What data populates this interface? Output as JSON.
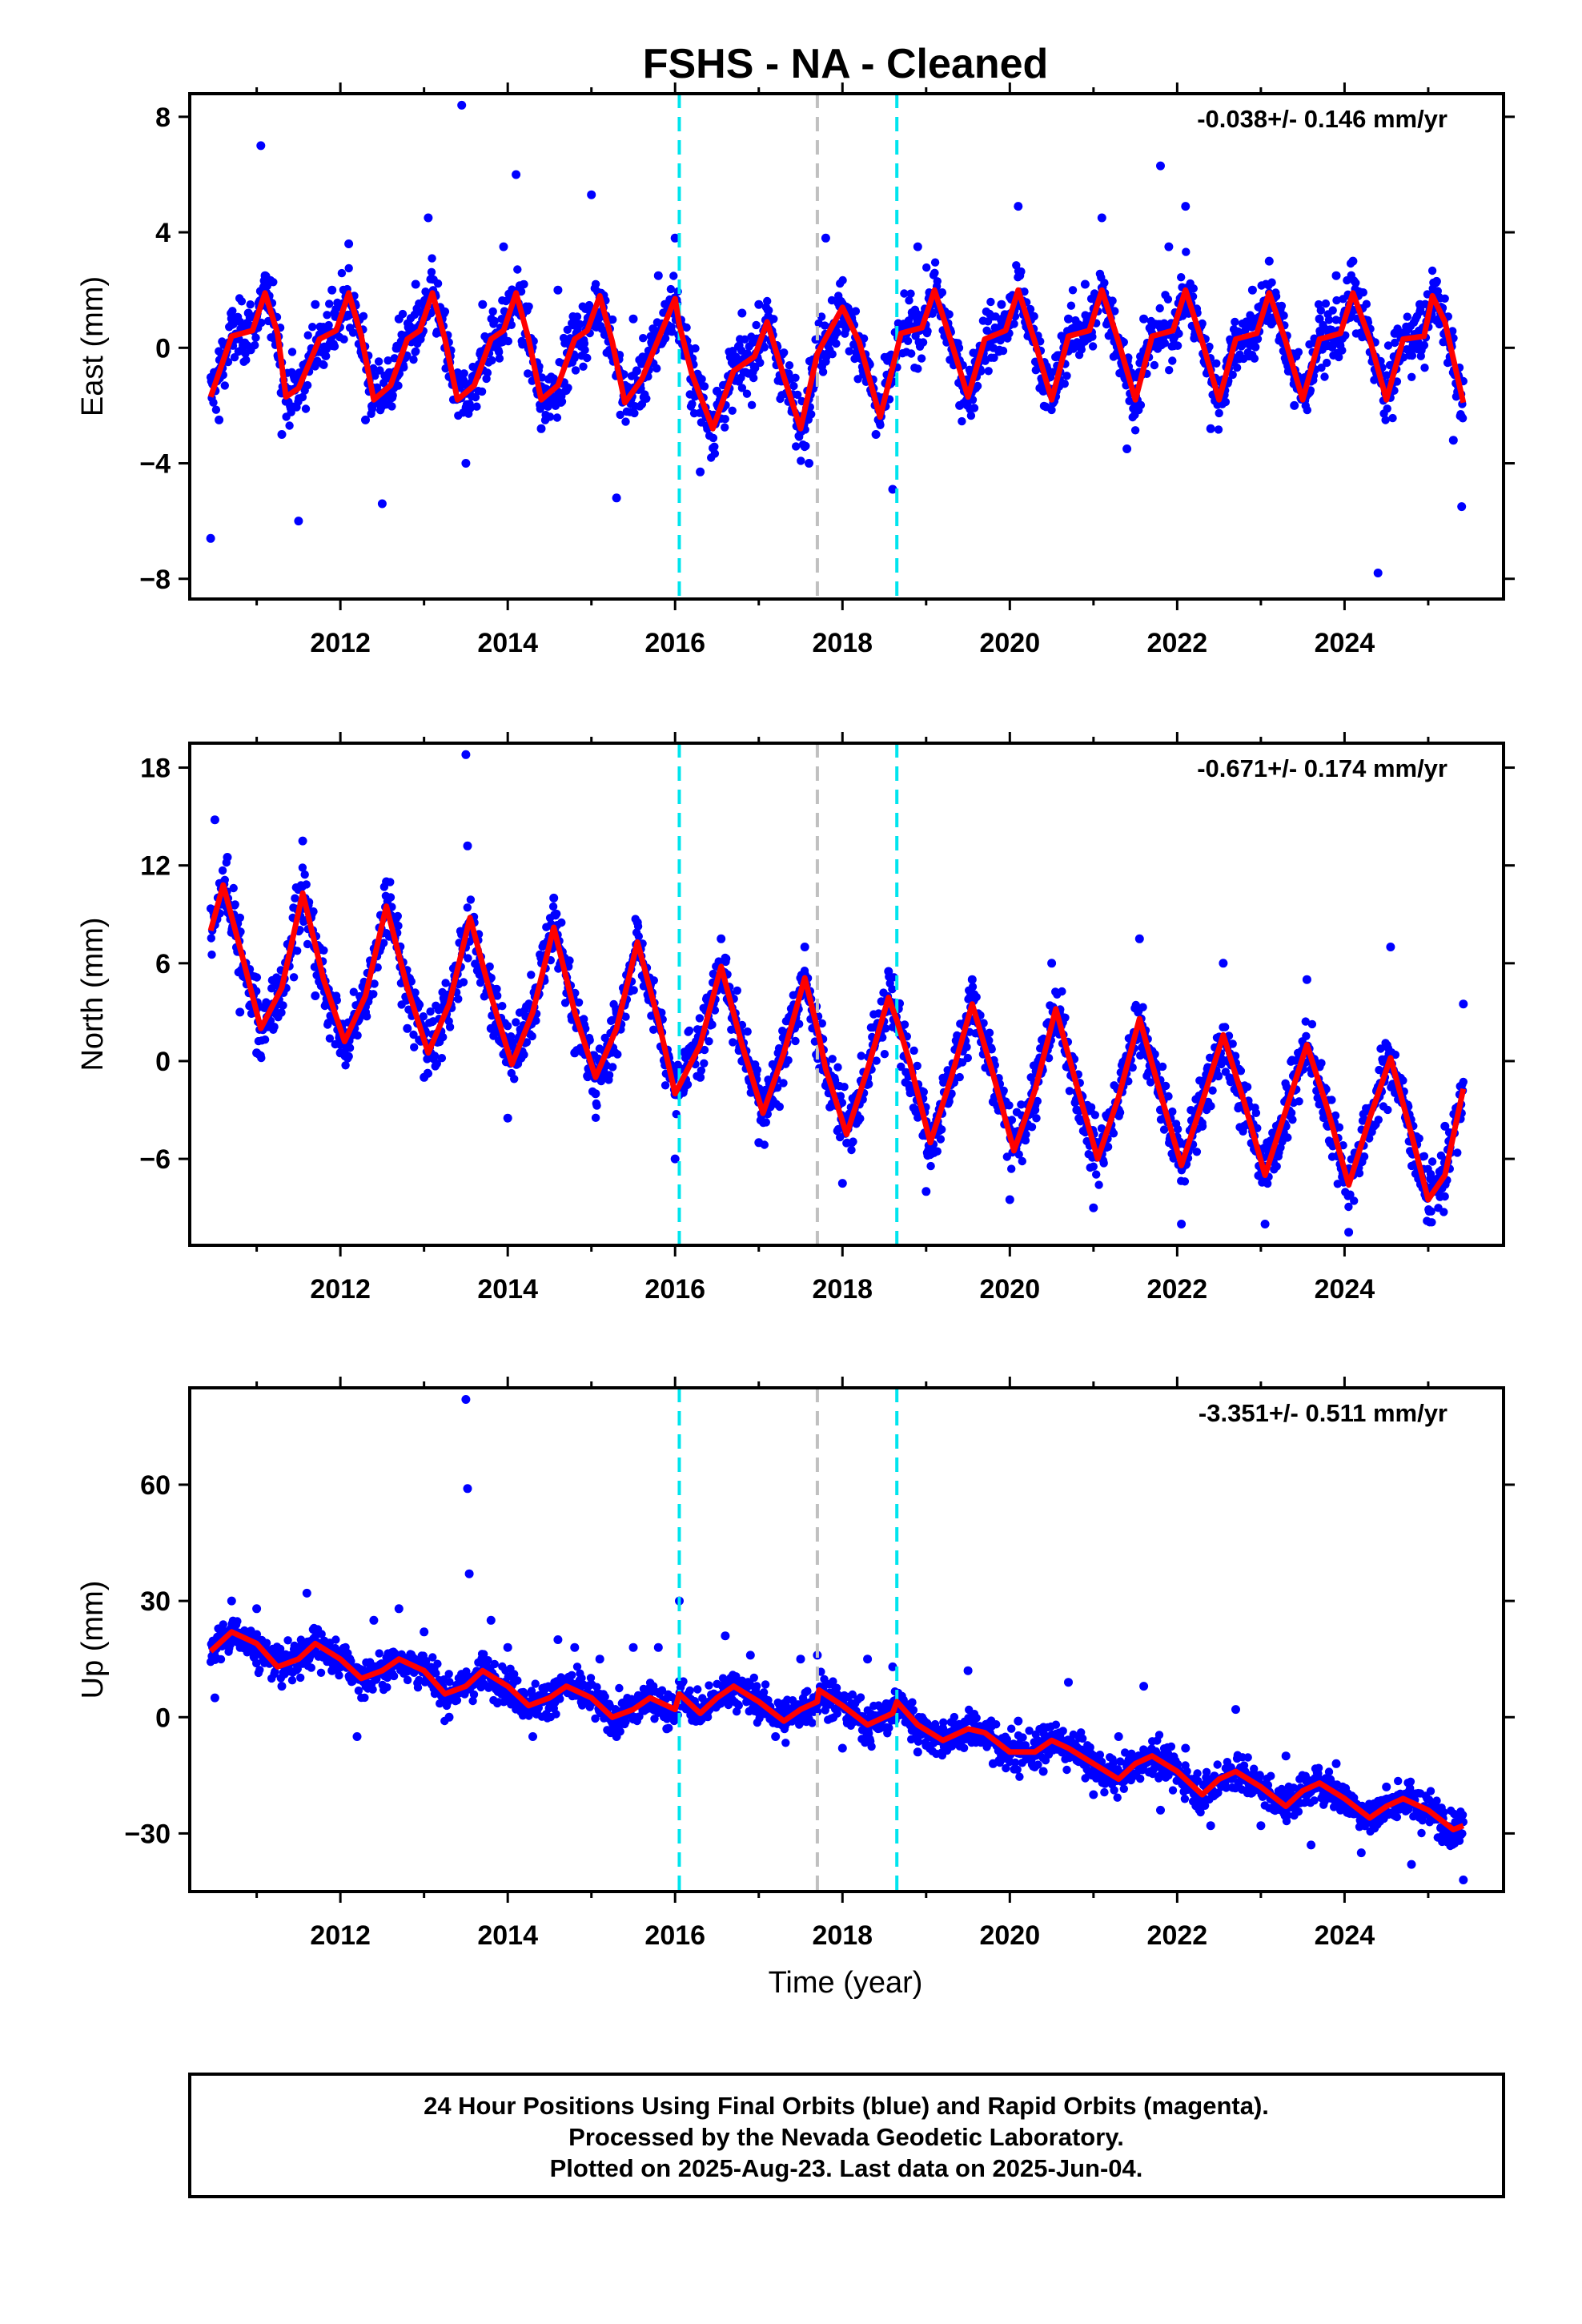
{
  "title": "FSHS  - NA - Cleaned",
  "xlabel": "Time (year)",
  "footer": [
    "24 Hour Positions Using Final Orbits (blue) and Rapid Orbits (magenta).",
    "Processed by the Nevada Geodetic Laboratory.",
    "Plotted on 2025-Aug-23. Last data on 2025-Jun-04."
  ],
  "colors": {
    "data_points": "#0000ff",
    "model_fit": "#ff0000",
    "equipment_change": "#00e5ee",
    "other_event": "#c0c0c0"
  },
  "chart_data": [
    {
      "type": "scatter",
      "component": "East",
      "ylabel": "East (mm)",
      "rate_label": "-0.038+/- 0.146 mm/yr",
      "xlim": [
        2010.2,
        2025.9
      ],
      "ylim": [
        -8.7,
        8.8
      ],
      "xticks": [
        2012,
        2014,
        2016,
        2018,
        2020,
        2022,
        2024
      ],
      "yticks": [
        -8,
        -4,
        0,
        4,
        8
      ],
      "ytick_labels": [
        "−8",
        "−4",
        "0",
        "4",
        "8"
      ],
      "vlines": [
        {
          "x": 2016.05,
          "kind": "equipment_change"
        },
        {
          "x": 2017.7,
          "kind": "other_event"
        },
        {
          "x": 2018.65,
          "kind": "equipment_change"
        }
      ],
      "series": [
        {
          "role": "fit",
          "x": [
            2010.45,
            2010.7,
            2010.95,
            2011.1,
            2011.25,
            2011.35,
            2011.5,
            2011.75,
            2011.95,
            2012.1,
            2012.25,
            2012.4,
            2012.6,
            2012.8,
            2012.95,
            2013.1,
            2013.25,
            2013.4,
            2013.6,
            2013.8,
            2013.95,
            2014.1,
            2014.25,
            2014.4,
            2014.6,
            2014.8,
            2014.95,
            2015.1,
            2015.25,
            2015.4,
            2015.6,
            2015.8,
            2016.0,
            2016.05,
            2016.2,
            2016.45,
            2016.7,
            2016.95,
            2017.1,
            2017.3,
            2017.5,
            2017.7,
            2018.0,
            2018.2,
            2018.45,
            2018.65,
            2018.7,
            2018.95,
            2019.1,
            2019.3,
            2019.5,
            2019.7,
            2019.95,
            2020.1,
            2020.3,
            2020.5,
            2020.7,
            2020.95,
            2021.1,
            2021.3,
            2021.5,
            2021.7,
            2021.95,
            2022.1,
            2022.3,
            2022.5,
            2022.7,
            2022.95,
            2023.1,
            2023.3,
            2023.5,
            2023.7,
            2023.95,
            2024.1,
            2024.3,
            2024.5,
            2024.7,
            2024.95,
            2025.05,
            2025.2,
            2025.42
          ],
          "y": [
            -1.7,
            0.4,
            0.6,
            1.9,
            0.5,
            -1.7,
            -1.4,
            0.3,
            0.6,
            1.9,
            0.4,
            -1.8,
            -1.3,
            0.3,
            0.6,
            1.9,
            0.3,
            -1.8,
            -1.3,
            0.3,
            0.6,
            1.9,
            0.3,
            -1.8,
            -1.3,
            0.3,
            0.6,
            1.8,
            0.2,
            -1.9,
            -1.1,
            0.3,
            1.7,
            0.8,
            -0.9,
            -2.8,
            -0.8,
            -0.3,
            0.9,
            -1.0,
            -2.8,
            -0.2,
            1.4,
            0.2,
            -2.4,
            -0.1,
            0.5,
            0.7,
            2.0,
            0.2,
            -1.7,
            0.3,
            0.6,
            2.0,
            0.2,
            -1.8,
            0.4,
            0.6,
            2.0,
            0.2,
            -1.8,
            0.4,
            0.6,
            2.0,
            0.2,
            -1.8,
            0.3,
            0.5,
            1.9,
            0.2,
            -1.8,
            0.3,
            0.5,
            1.9,
            0.3,
            -1.8,
            0.3,
            0.4,
            1.8,
            0.9,
            -1.9
          ]
        },
        {
          "role": "observations",
          "x": [
            2010.45,
            2010.55,
            2010.7,
            2010.9,
            2011.05,
            2011.1,
            2011.3,
            2011.5,
            2011.7,
            2011.9,
            2012.1,
            2012.3,
            2012.5,
            2012.7,
            2012.9,
            2013.05,
            2013.3,
            2013.45,
            2013.5,
            2013.7,
            2013.95,
            2014.1,
            2014.4,
            2014.6,
            2014.8,
            2015.0,
            2015.3,
            2015.5,
            2015.8,
            2016.0,
            2016.3,
            2016.5,
            2016.8,
            2017.0,
            2017.3,
            2017.6,
            2017.8,
            2018.0,
            2018.4,
            2018.6,
            2018.9,
            2019.1,
            2019.4,
            2019.6,
            2019.9,
            2020.1,
            2020.4,
            2020.7,
            2020.9,
            2021.1,
            2021.4,
            2021.6,
            2021.8,
            2021.9,
            2022.1,
            2022.4,
            2022.7,
            2022.9,
            2023.1,
            2023.4,
            2023.7,
            2023.9,
            2024.1,
            2024.4,
            2024.6,
            2024.9,
            2025.1,
            2025.3,
            2025.4
          ],
          "y": [
            -6.6,
            -2.5,
            0.8,
            1.2,
            7.0,
            2.5,
            -3.0,
            -6.0,
            1.5,
            2.0,
            3.6,
            -2.5,
            -5.4,
            1.0,
            2.2,
            4.5,
            -1.0,
            8.4,
            -4.0,
            1.5,
            3.5,
            6.0,
            -2.8,
            2.0,
            1.0,
            5.3,
            -5.2,
            1.0,
            2.5,
            3.8,
            -4.3,
            -1.5,
            1.2,
            1.5,
            -1.0,
            -4.0,
            3.8,
            1.5,
            -3.0,
            -4.9,
            3.5,
            1.8,
            -2.0,
            -1.0,
            1.5,
            4.9,
            -1.5,
            1.0,
            2.2,
            4.5,
            -3.5,
            1.0,
            6.3,
            3.5,
            4.9,
            -2.8,
            0.5,
            2.0,
            3.0,
            -2.0,
            1.0,
            2.5,
            3.0,
            -7.8,
            0.5,
            1.5,
            2.3,
            -3.2,
            -5.5
          ]
        }
      ]
    },
    {
      "type": "scatter",
      "component": "North",
      "ylabel": "North (mm)",
      "rate_label": "-0.671+/- 0.174 mm/yr",
      "xlim": [
        2010.2,
        2025.9
      ],
      "ylim": [
        -11.3,
        19.5
      ],
      "xticks": [
        2012,
        2014,
        2016,
        2018,
        2020,
        2022,
        2024
      ],
      "yticks": [
        -6,
        0,
        6,
        12,
        18
      ],
      "ytick_labels": [
        "−6",
        "0",
        "6",
        "12",
        "18"
      ],
      "vlines": [
        {
          "x": 2016.05,
          "kind": "equipment_change"
        },
        {
          "x": 2017.7,
          "kind": "other_event"
        },
        {
          "x": 2018.65,
          "kind": "equipment_change"
        }
      ],
      "series": [
        {
          "role": "fit",
          "x": [
            2010.45,
            2010.6,
            2010.85,
            2011.05,
            2011.3,
            2011.55,
            2011.8,
            2012.05,
            2012.3,
            2012.55,
            2012.8,
            2013.05,
            2013.3,
            2013.55,
            2013.8,
            2014.05,
            2014.3,
            2014.55,
            2014.8,
            2015.05,
            2015.3,
            2015.55,
            2015.8,
            2016.0,
            2016.05,
            2016.3,
            2016.55,
            2016.8,
            2017.05,
            2017.3,
            2017.55,
            2017.7,
            2017.8,
            2018.05,
            2018.3,
            2018.55,
            2018.65,
            2018.8,
            2019.05,
            2019.3,
            2019.55,
            2019.8,
            2020.05,
            2020.3,
            2020.55,
            2020.8,
            2021.05,
            2021.3,
            2021.55,
            2021.8,
            2022.05,
            2022.3,
            2022.55,
            2022.8,
            2023.05,
            2023.3,
            2023.55,
            2023.8,
            2024.05,
            2024.3,
            2024.55,
            2024.8,
            2025.0,
            2025.2,
            2025.42
          ],
          "y": [
            8.0,
            10.8,
            6.0,
            2.0,
            4.5,
            10.3,
            5.0,
            1.2,
            4.0,
            9.5,
            4.5,
            0.5,
            3.5,
            8.8,
            4.0,
            -0.2,
            3.0,
            8.2,
            3.0,
            -1.0,
            2.0,
            7.3,
            2.5,
            -2.0,
            -1.5,
            1.0,
            5.8,
            1.0,
            -3.2,
            0.5,
            5.1,
            2.0,
            -0.5,
            -4.5,
            -0.5,
            3.9,
            2.5,
            0.0,
            -5.0,
            -1.0,
            3.5,
            -0.8,
            -5.5,
            -1.8,
            3.2,
            -1.5,
            -6.0,
            -2.2,
            2.6,
            -2.0,
            -6.4,
            -2.5,
            1.6,
            -2.5,
            -7.0,
            -3.0,
            1.0,
            -3.0,
            -7.6,
            -3.5,
            0.2,
            -4.5,
            -8.5,
            -7.0,
            -1.7
          ]
        },
        {
          "role": "observations",
          "x": [
            2010.5,
            2010.65,
            2010.8,
            2011.0,
            2011.3,
            2011.55,
            2011.7,
            2012.0,
            2012.3,
            2012.55,
            2012.8,
            2013.0,
            2013.3,
            2013.5,
            2013.52,
            2013.8,
            2014.0,
            2014.3,
            2014.55,
            2014.8,
            2015.05,
            2015.3,
            2015.55,
            2015.8,
            2016.0,
            2016.3,
            2016.55,
            2016.8,
            2017.0,
            2017.3,
            2017.55,
            2017.8,
            2018.0,
            2018.3,
            2018.55,
            2018.8,
            2019.0,
            2019.3,
            2019.55,
            2019.8,
            2020.0,
            2020.3,
            2020.5,
            2020.8,
            2021.0,
            2021.3,
            2021.55,
            2021.8,
            2022.05,
            2022.3,
            2022.55,
            2022.8,
            2023.05,
            2023.3,
            2023.55,
            2023.8,
            2024.05,
            2024.3,
            2024.55,
            2024.8,
            2025.0,
            2025.2,
            2025.42
          ],
          "y": [
            14.8,
            12.5,
            3.0,
            0.5,
            5.0,
            13.5,
            4.0,
            0.5,
            3.0,
            11.0,
            2.0,
            -1.0,
            4.0,
            18.8,
            13.2,
            2.0,
            -3.5,
            3.0,
            10.0,
            0.5,
            -2.0,
            3.0,
            8.5,
            3.0,
            -6.0,
            -1.0,
            7.5,
            0.0,
            -5.0,
            0.5,
            7.0,
            -1.5,
            -7.5,
            -1.0,
            5.5,
            -1.5,
            -8.0,
            -2.0,
            5.0,
            -2.5,
            -8.5,
            -3.0,
            6.0,
            -3.0,
            -9.0,
            -3.0,
            7.5,
            -3.0,
            -10.0,
            -4.0,
            6.0,
            -4.0,
            -10.0,
            -4.0,
            5.0,
            -4.0,
            -10.5,
            -4.0,
            7.0,
            -4.5,
            -8.0,
            -4.0,
            3.5
          ]
        }
      ]
    },
    {
      "type": "scatter",
      "component": "Up",
      "ylabel": "Up (mm)",
      "rate_label": "-3.351+/- 0.511 mm/yr",
      "xlim": [
        2010.2,
        2025.9
      ],
      "ylim": [
        -45,
        85
      ],
      "xticks": [
        2012,
        2014,
        2016,
        2018,
        2020,
        2022,
        2024
      ],
      "yticks": [
        -30,
        0,
        30,
        60
      ],
      "ytick_labels": [
        "−30",
        "0",
        "30",
        "60"
      ],
      "vlines": [
        {
          "x": 2016.05,
          "kind": "equipment_change"
        },
        {
          "x": 2017.7,
          "kind": "other_event"
        },
        {
          "x": 2018.65,
          "kind": "equipment_change"
        }
      ],
      "series": [
        {
          "role": "fit",
          "x": [
            2010.45,
            2010.7,
            2011.0,
            2011.25,
            2011.5,
            2011.7,
            2012.0,
            2012.25,
            2012.5,
            2012.7,
            2013.0,
            2013.25,
            2013.5,
            2013.7,
            2014.0,
            2014.25,
            2014.5,
            2014.7,
            2015.0,
            2015.25,
            2015.5,
            2015.7,
            2016.0,
            2016.05,
            2016.3,
            2016.5,
            2016.7,
            2017.0,
            2017.3,
            2017.5,
            2017.7,
            2017.72,
            2018.0,
            2018.3,
            2018.6,
            2018.65,
            2018.9,
            2019.2,
            2019.5,
            2019.7,
            2020.0,
            2020.3,
            2020.5,
            2020.7,
            2021.0,
            2021.3,
            2021.5,
            2021.7,
            2022.0,
            2022.3,
            2022.5,
            2022.7,
            2023.0,
            2023.3,
            2023.5,
            2023.7,
            2024.0,
            2024.3,
            2024.5,
            2024.7,
            2025.0,
            2025.3,
            2025.42
          ],
          "y": [
            17,
            22,
            19,
            13,
            15,
            19,
            15,
            10,
            12,
            15,
            12,
            6,
            8,
            12,
            8,
            3,
            5,
            8,
            5,
            0,
            2,
            5,
            2,
            6,
            1,
            5,
            8,
            4,
            -1,
            2,
            4,
            7,
            3,
            -2,
            1,
            4,
            -2,
            -6,
            -3,
            -4,
            -9,
            -9,
            -6,
            -8,
            -12,
            -16,
            -12,
            -10,
            -14,
            -20,
            -16,
            -14,
            -18,
            -23,
            -19,
            -17,
            -21,
            -26,
            -23,
            -21,
            -24,
            -29,
            -28
          ]
        },
        {
          "role": "observations",
          "x": [
            2010.5,
            2010.7,
            2011.0,
            2011.3,
            2011.6,
            2011.9,
            2012.2,
            2012.4,
            2012.7,
            2013.0,
            2013.3,
            2013.5,
            2013.52,
            2013.54,
            2013.8,
            2014.0,
            2014.3,
            2014.6,
            2014.8,
            2015.1,
            2015.3,
            2015.5,
            2015.8,
            2015.9,
            2016.05,
            2016.3,
            2016.6,
            2016.9,
            2017.2,
            2017.5,
            2017.7,
            2018.0,
            2018.3,
            2018.6,
            2018.9,
            2019.2,
            2019.5,
            2019.8,
            2020.1,
            2020.4,
            2020.7,
            2021.0,
            2021.3,
            2021.6,
            2021.8,
            2022.1,
            2022.4,
            2022.7,
            2023.0,
            2023.3,
            2023.6,
            2023.9,
            2024.2,
            2024.5,
            2024.8,
            2025.1,
            2025.3,
            2025.42
          ],
          "y": [
            5,
            30,
            28,
            8,
            32,
            12,
            -5,
            25,
            28,
            22,
            0,
            82,
            59,
            37,
            25,
            18,
            -5,
            20,
            18,
            15,
            -5,
            18,
            18,
            -3,
            30,
            2,
            21,
            16,
            -5,
            15,
            16,
            -8,
            15,
            13,
            -9,
            -3,
            12,
            -12,
            -1,
            -14,
            9,
            -20,
            -5,
            8,
            -24,
            -8,
            -28,
            2,
            -28,
            -10,
            -33,
            -12,
            -35,
            -18,
            -38,
            -25,
            -32,
            -42
          ]
        }
      ]
    }
  ]
}
